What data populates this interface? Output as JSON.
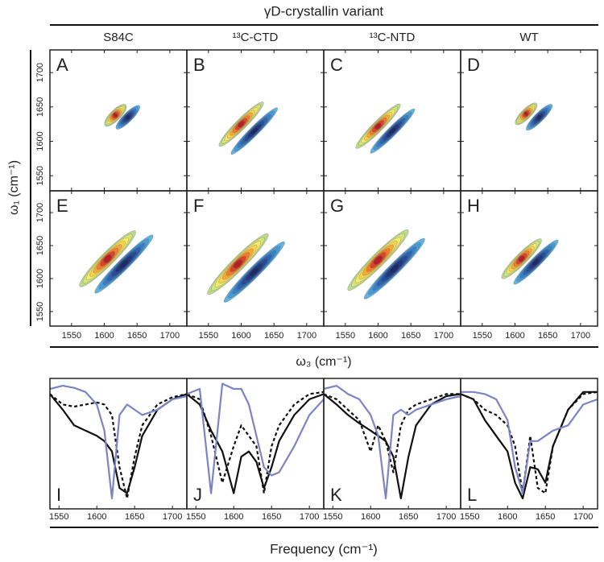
{
  "super_title": "γD-crystallin variant",
  "columns": [
    "S84C",
    "¹³C-CTD",
    "¹³C-NTD",
    "WT"
  ],
  "contour": {
    "y_label": "ω₁ (cm⁻¹)",
    "x_label": "ω₃ (cm⁻¹)",
    "xlim": [
      1517,
      1726
    ],
    "ylim": [
      1528,
      1733
    ],
    "xticks": [
      1550,
      1600,
      1650,
      1700
    ],
    "yticks": [
      1550,
      1600,
      1650,
      1700
    ],
    "positive_colors": [
      "#b9d98c",
      "#d7e47e",
      "#f3ec6a",
      "#f9d24e",
      "#f6a83a",
      "#ee7d2d",
      "#d9452a",
      "#b52027"
    ],
    "negative_colors": [
      "#62b2dd",
      "#4a9ad2",
      "#3a7fc2",
      "#2f63ad",
      "#284b95",
      "#22387c",
      "#1d2a66"
    ],
    "panels": [
      {
        "letter": "A",
        "positive": [
          {
            "x": 1617,
            "y": 1638,
            "length": 45,
            "width": 16
          }
        ],
        "negative": [
          {
            "x": 1636,
            "y": 1635,
            "length": 50,
            "width": 14
          }
        ]
      },
      {
        "letter": "B",
        "positive": [
          {
            "x": 1600,
            "y": 1625,
            "length": 95,
            "width": 16
          }
        ],
        "negative": [
          {
            "x": 1620,
            "y": 1615,
            "length": 100,
            "width": 14
          }
        ]
      },
      {
        "letter": "C",
        "positive": [
          {
            "x": 1600,
            "y": 1622,
            "length": 95,
            "width": 16
          }
        ],
        "negative": [
          {
            "x": 1622,
            "y": 1615,
            "length": 95,
            "width": 14
          }
        ]
      },
      {
        "letter": "D",
        "positive": [
          {
            "x": 1617,
            "y": 1640,
            "length": 45,
            "width": 15
          }
        ],
        "negative": [
          {
            "x": 1637,
            "y": 1635,
            "length": 55,
            "width": 14
          }
        ]
      },
      {
        "letter": "E",
        "positive": [
          {
            "x": 1605,
            "y": 1630,
            "length": 120,
            "width": 20
          }
        ],
        "negative": [
          {
            "x": 1630,
            "y": 1622,
            "length": 125,
            "width": 17
          }
        ]
      },
      {
        "letter": "F",
        "positive": [
          {
            "x": 1595,
            "y": 1622,
            "length": 130,
            "width": 20
          }
        ],
        "negative": [
          {
            "x": 1620,
            "y": 1610,
            "length": 130,
            "width": 17
          }
        ]
      },
      {
        "letter": "G",
        "positive": [
          {
            "x": 1600,
            "y": 1628,
            "length": 130,
            "width": 20
          }
        ],
        "negative": [
          {
            "x": 1625,
            "y": 1615,
            "length": 130,
            "width": 17
          }
        ]
      },
      {
        "letter": "H",
        "positive": [
          {
            "x": 1610,
            "y": 1630,
            "length": 85,
            "width": 17
          }
        ],
        "negative": [
          {
            "x": 1632,
            "y": 1625,
            "length": 95,
            "width": 15
          }
        ]
      }
    ]
  },
  "spectra": {
    "x_label": "Frequency (cm⁻¹)",
    "xlim": [
      1538,
      1719
    ],
    "ylim": [
      -1.1,
      0.15
    ],
    "xticks": [
      1550,
      1600,
      1650,
      1700
    ],
    "x": [
      1538,
      1555,
      1570,
      1585,
      1600,
      1610,
      1620,
      1630,
      1640,
      1650,
      1660,
      1680,
      1700,
      1719
    ],
    "styles": [
      {
        "color": "#111111",
        "dash": "none"
      },
      {
        "color": "#111111",
        "dash": "4 3"
      },
      {
        "color": "#7b84c4",
        "dash": "none"
      }
    ],
    "panels": [
      {
        "letter": "I",
        "series": [
          [
            0,
            -0.15,
            -0.3,
            -0.35,
            -0.4,
            -0.45,
            -0.55,
            -0.9,
            -0.95,
            -0.7,
            -0.4,
            -0.15,
            -0.05,
            0
          ],
          [
            0,
            -0.1,
            -0.12,
            -0.1,
            -0.08,
            -0.1,
            -0.2,
            -0.7,
            -1,
            -0.6,
            -0.3,
            -0.1,
            -0.03,
            0
          ],
          [
            0.05,
            0.08,
            0.06,
            0.02,
            -0.1,
            -0.35,
            -1,
            -0.2,
            -0.1,
            -0.15,
            -0.2,
            -0.15,
            -0.05,
            -0.02
          ]
        ]
      },
      {
        "letter": "J",
        "series": [
          [
            0,
            -0.1,
            -0.35,
            -0.55,
            -0.95,
            -0.6,
            -0.55,
            -0.65,
            -0.9,
            -0.7,
            -0.45,
            -0.2,
            -0.05,
            0
          ],
          [
            0,
            -0.05,
            -0.4,
            -0.85,
            -0.5,
            -0.3,
            -0.4,
            -0.5,
            -0.95,
            -0.5,
            -0.3,
            -0.1,
            0,
            0.02
          ],
          [
            0,
            0.05,
            -0.95,
            0.1,
            0.05,
            0.05,
            -0.1,
            -0.4,
            -0.7,
            -0.78,
            -0.75,
            -0.5,
            -0.2,
            -0.05
          ]
        ]
      },
      {
        "letter": "K",
        "series": [
          [
            0,
            -0.1,
            -0.2,
            -0.28,
            -0.35,
            -0.4,
            -0.45,
            -0.6,
            -1,
            -0.6,
            -0.3,
            -0.1,
            -0.02,
            0
          ],
          [
            0,
            -0.05,
            -0.15,
            -0.25,
            -0.55,
            -0.3,
            -0.45,
            -0.75,
            -0.3,
            -0.15,
            -0.1,
            -0.05,
            0,
            0
          ],
          [
            0.05,
            0.08,
            0,
            -0.05,
            -0.2,
            -0.4,
            -1,
            -0.2,
            -0.15,
            -0.2,
            -0.15,
            -0.1,
            -0.05,
            -0.02
          ]
        ]
      },
      {
        "letter": "L",
        "series": [
          [
            0,
            -0.05,
            -0.25,
            -0.4,
            -0.55,
            -0.85,
            -1,
            -0.7,
            -0.72,
            -0.85,
            -0.5,
            -0.15,
            0.02,
            0.02
          ],
          [
            0,
            -0.05,
            -0.15,
            -0.2,
            -0.3,
            -0.5,
            -0.95,
            -0.4,
            -0.9,
            -0.95,
            -0.5,
            -0.15,
            0,
            0.02
          ],
          [
            0.02,
            0.02,
            0,
            -0.05,
            -0.25,
            -0.7,
            -0.95,
            -0.45,
            -0.45,
            -0.4,
            -0.35,
            -0.3,
            -0.1,
            -0.05
          ]
        ]
      }
    ]
  }
}
